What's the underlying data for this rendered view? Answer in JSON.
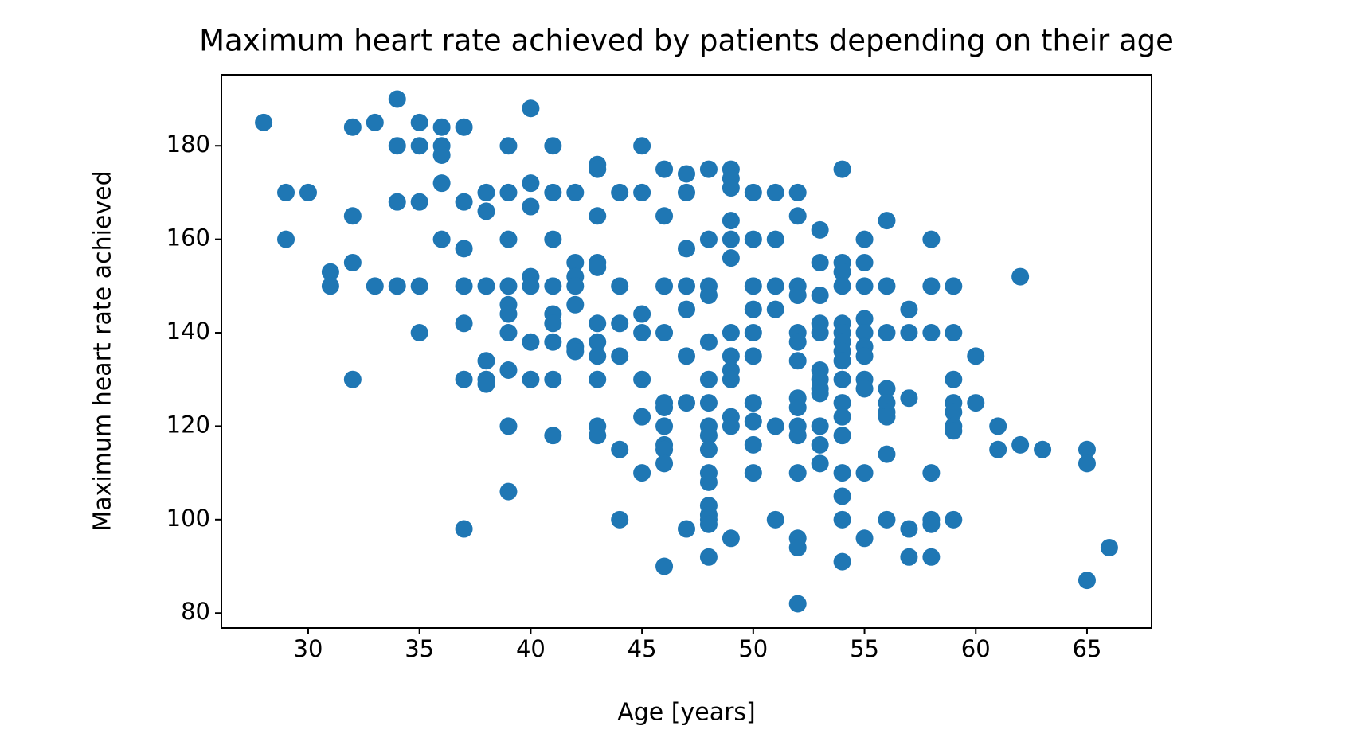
{
  "chart_data": {
    "type": "scatter",
    "title": "Maximum heart rate achieved by patients depending on their age",
    "xlabel": "Age [years]",
    "ylabel": "Maximum heart rate achieved",
    "color": "#1f77b4",
    "xlim": [
      26.1,
      67.9
    ],
    "ylim": [
      76.8,
      195.2
    ],
    "xticks": [
      30,
      35,
      40,
      45,
      50,
      55,
      60,
      65
    ],
    "yticks": [
      80,
      100,
      120,
      140,
      160,
      180
    ],
    "grid": false,
    "x": [
      28,
      29,
      29,
      30,
      31,
      31,
      32,
      32,
      32,
      32,
      33,
      33,
      34,
      34,
      34,
      34,
      35,
      35,
      35,
      35,
      35,
      36,
      36,
      36,
      36,
      36,
      37,
      37,
      37,
      37,
      37,
      37,
      37,
      38,
      38,
      38,
      38,
      38,
      38,
      39,
      39,
      39,
      39,
      39,
      39,
      39,
      39,
      39,
      39,
      40,
      40,
      40,
      40,
      40,
      40,
      40,
      41,
      41,
      41,
      41,
      41,
      41,
      41,
      41,
      41,
      42,
      42,
      42,
      42,
      42,
      42,
      42,
      43,
      43,
      43,
      43,
      43,
      43,
      43,
      43,
      43,
      43,
      43,
      44,
      44,
      44,
      44,
      44,
      44,
      45,
      45,
      45,
      45,
      45,
      45,
      45,
      46,
      46,
      46,
      46,
      46,
      46,
      46,
      46,
      46,
      46,
      46,
      47,
      47,
      47,
      47,
      47,
      47,
      47,
      47,
      48,
      48,
      48,
      48,
      48,
      48,
      48,
      48,
      48,
      48,
      48,
      48,
      48,
      48,
      48,
      48,
      48,
      49,
      49,
      49,
      49,
      49,
      49,
      49,
      49,
      49,
      49,
      49,
      49,
      49,
      50,
      50,
      50,
      50,
      50,
      50,
      50,
      50,
      50,
      50,
      51,
      51,
      51,
      51,
      51,
      51,
      52,
      52,
      52,
      52,
      52,
      52,
      52,
      52,
      52,
      52,
      52,
      52,
      52,
      52,
      52,
      53,
      53,
      53,
      53,
      53,
      53,
      53,
      53,
      53,
      53,
      53,
      53,
      54,
      54,
      54,
      54,
      54,
      54,
      54,
      54,
      54,
      54,
      54,
      54,
      54,
      54,
      54,
      54,
      54,
      55,
      55,
      55,
      55,
      55,
      55,
      55,
      55,
      55,
      55,
      55,
      56,
      56,
      56,
      56,
      56,
      56,
      56,
      56,
      56,
      57,
      57,
      57,
      57,
      57,
      58,
      58,
      58,
      58,
      58,
      58,
      58,
      59,
      59,
      59,
      59,
      59,
      59,
      59,
      59,
      60,
      60,
      61,
      61,
      62,
      62,
      63,
      65,
      65,
      65,
      66
    ],
    "values": [
      185,
      170,
      160,
      170,
      153,
      150,
      184,
      165,
      155,
      130,
      185,
      150,
      190,
      180,
      168,
      150,
      185,
      180,
      168,
      150,
      140,
      184,
      180,
      178,
      172,
      160,
      184,
      168,
      158,
      150,
      142,
      130,
      98,
      170,
      166,
      150,
      134,
      130,
      129,
      180,
      170,
      160,
      150,
      146,
      144,
      140,
      132,
      120,
      106,
      188,
      172,
      167,
      152,
      150,
      138,
      130,
      180,
      170,
      160,
      150,
      144,
      142,
      138,
      130,
      118,
      170,
      155,
      152,
      150,
      146,
      137,
      136,
      176,
      175,
      165,
      155,
      154,
      142,
      138,
      135,
      130,
      120,
      118,
      170,
      150,
      142,
      135,
      115,
      100,
      180,
      170,
      144,
      140,
      130,
      122,
      110,
      175,
      165,
      150,
      140,
      125,
      124,
      120,
      116,
      115,
      112,
      90,
      174,
      170,
      158,
      150,
      145,
      135,
      125,
      98,
      175,
      160,
      150,
      148,
      138,
      130,
      125,
      120,
      118,
      115,
      110,
      108,
      103,
      101,
      100,
      99,
      92,
      175,
      173,
      171,
      164,
      160,
      156,
      140,
      135,
      132,
      130,
      122,
      120,
      96,
      170,
      160,
      150,
      145,
      140,
      135,
      125,
      121,
      116,
      110,
      170,
      160,
      150,
      145,
      120,
      100,
      170,
      165,
      150,
      148,
      140,
      138,
      134,
      126,
      124,
      120,
      118,
      110,
      96,
      94,
      82,
      162,
      155,
      148,
      142,
      140,
      132,
      130,
      128,
      127,
      120,
      116,
      112,
      175,
      155,
      153,
      150,
      142,
      140,
      138,
      136,
      134,
      130,
      125,
      122,
      118,
      110,
      105,
      100,
      91,
      160,
      155,
      150,
      143,
      140,
      137,
      135,
      130,
      128,
      110,
      96,
      164,
      150,
      140,
      128,
      125,
      123,
      122,
      114,
      100,
      145,
      140,
      126,
      98,
      92,
      160,
      150,
      140,
      110,
      100,
      99,
      92,
      150,
      140,
      130,
      125,
      123,
      120,
      119,
      100,
      135,
      125,
      120,
      115,
      152,
      116,
      115,
      115,
      112,
      87,
      94
    ]
  }
}
